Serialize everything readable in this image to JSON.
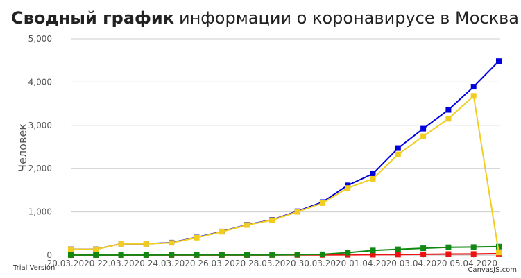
{
  "chart_data": {
    "type": "line",
    "title_bold": "Сводный график",
    "title_rest": "информации о коронавирусе в Москва",
    "ylabel": "Человек",
    "xlabel": "",
    "ylim": [
      0,
      5000
    ],
    "y_ticks": [
      0,
      1000,
      2000,
      3000,
      4000,
      5000
    ],
    "y_tick_labels": [
      "0",
      "1,000",
      "2,000",
      "3,000",
      "4,000",
      "5,000"
    ],
    "x_tick_labels": [
      "20.03.2020",
      "22.03.2020",
      "24.03.2020",
      "26.03.2020",
      "28.03.2020",
      "30.03.2020",
      "01.04.2020",
      "03.04.2020",
      "05.04.2020"
    ],
    "categories": [
      "20.03.2020",
      "21.03.2020",
      "22.03.2020",
      "23.03.2020",
      "24.03.2020",
      "25.03.2020",
      "26.03.2020",
      "27.03.2020",
      "28.03.2020",
      "29.03.2020",
      "30.03.2020",
      "31.03.2020",
      "01.04.2020",
      "02.04.2020",
      "03.04.2020",
      "04.04.2020",
      "05.04.2020",
      "06.04.2020"
    ],
    "grid": true,
    "series": [
      {
        "color": "#0000dd",
        "values": [
          137,
          137,
          262,
          262,
          290,
          410,
          546,
          703,
          817,
          1014,
          1226,
          1613,
          1880,
          2475,
          2923,
          3357,
          3893,
          4484
        ]
      },
      {
        "color": "#ee1111",
        "values": [
          1,
          1,
          1,
          1,
          1,
          1,
          1,
          1,
          3,
          3,
          4,
          6,
          9,
          11,
          17,
          24,
          26,
          34
        ]
      },
      {
        "color": "#118811",
        "values": [
          2,
          2,
          2,
          2,
          5,
          5,
          5,
          5,
          5,
          10,
          18,
          56,
          107,
          134,
          159,
          181,
          186,
          196
        ]
      },
      {
        "color": "#f2cd1f",
        "values": [
          134,
          134,
          259,
          259,
          284,
          404,
          540,
          697,
          809,
          1001,
          1204,
          1551,
          1764,
          2330,
          2747,
          3152,
          3681,
          60
        ]
      }
    ],
    "credit_left": "Trial Version",
    "credit_right": "CanvasJS.com"
  }
}
